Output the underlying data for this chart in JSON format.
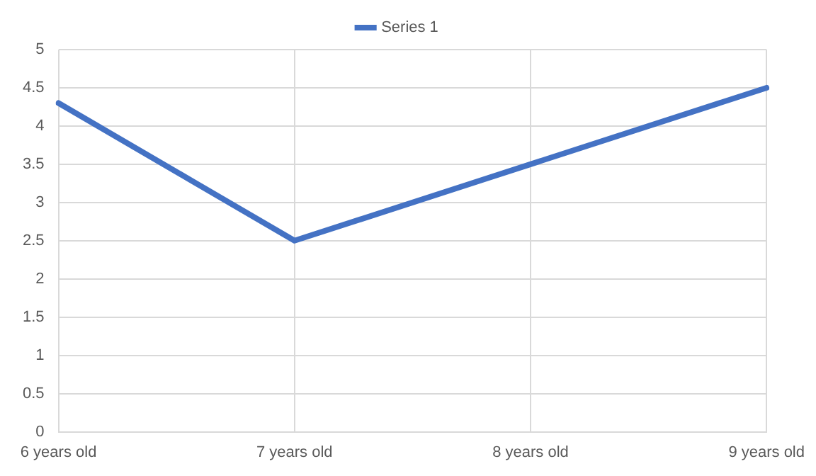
{
  "chart_data": {
    "type": "line",
    "categories": [
      "6 years old",
      "7 years old",
      "8 years old",
      "9 years old"
    ],
    "series": [
      {
        "name": "Series 1",
        "color": "#4472c4",
        "values": [
          4.3,
          2.5,
          3.5,
          4.5
        ]
      }
    ],
    "ylim": [
      0,
      5
    ],
    "yticks": [
      0,
      0.5,
      1,
      1.5,
      2,
      2.5,
      3,
      3.5,
      4,
      4.5,
      5
    ],
    "grid": true,
    "legend": "top",
    "marker": "none",
    "line_style": "solid"
  }
}
